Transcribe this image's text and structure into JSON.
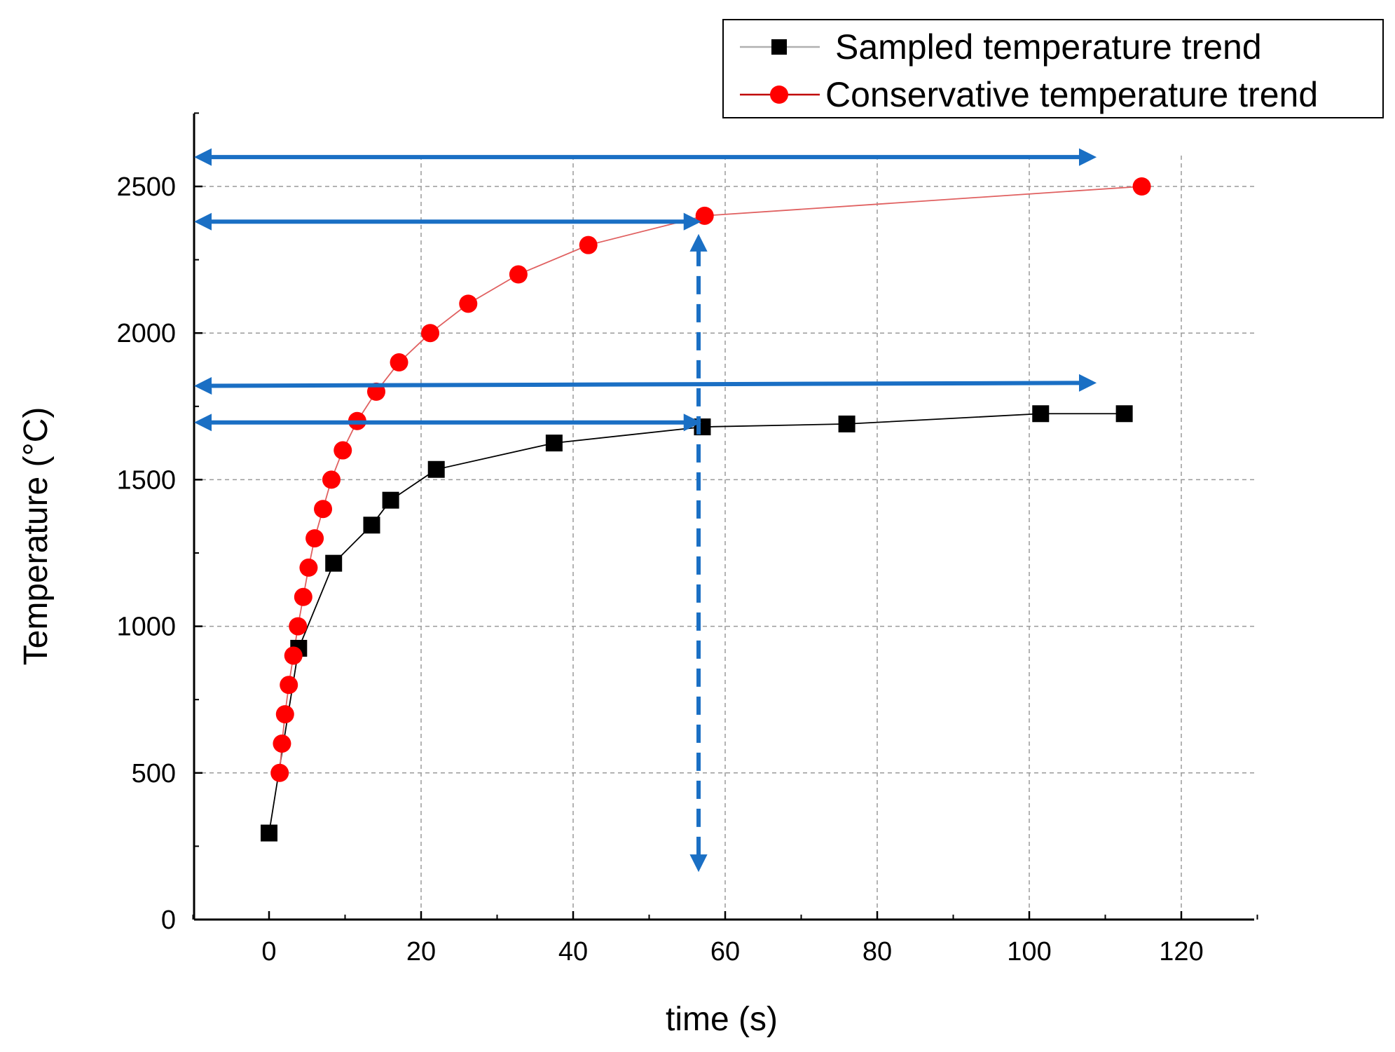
{
  "chart_data": {
    "type": "line",
    "title": "",
    "xlabel": "time (s)",
    "ylabel": "Temperature (°C)",
    "xlim": [
      -10,
      130
    ],
    "ylim": [
      0,
      2750
    ],
    "xticks": [
      0,
      20,
      40,
      60,
      80,
      100,
      120
    ],
    "yticks": [
      0,
      500,
      1000,
      1500,
      2000,
      2500
    ],
    "xtick_labels": [
      "0",
      "20",
      "40",
      "60",
      "80",
      "100",
      "120"
    ],
    "ytick_labels": [
      "0",
      "500",
      "1000",
      "1500",
      "2000",
      "2500"
    ],
    "grid": true,
    "legend_position": "top-right",
    "series": [
      {
        "name": "Sampled temperature trend",
        "marker": "square",
        "color": "#000000",
        "line_color": "#000000",
        "legend_line_color": "#b0b0b0",
        "x": [
          0,
          3.9,
          8.5,
          13.5,
          16,
          22,
          37.5,
          57,
          76,
          101.5,
          112.5
        ],
        "y": [
          295,
          925,
          1215,
          1345,
          1430,
          1535,
          1625,
          1680,
          1690,
          1725,
          1725
        ]
      },
      {
        "name": "Conservative temperature trend",
        "marker": "circle",
        "color": "#ff0000",
        "line_color": "#e06060",
        "legend_line_color": "#c00000",
        "x": [
          1.4,
          1.7,
          2.1,
          2.6,
          3.2,
          3.8,
          4.5,
          5.2,
          6.0,
          7.1,
          8.2,
          9.7,
          11.6,
          14.1,
          17.1,
          21.2,
          26.2,
          32.8,
          42.0,
          57.3,
          114.8
        ],
        "y": [
          500,
          600,
          700,
          800,
          900,
          1000,
          1100,
          1200,
          1300,
          1400,
          1500,
          1600,
          1700,
          1800,
          1900,
          2000,
          2100,
          2200,
          2300,
          2400,
          2500
        ]
      }
    ],
    "annotations": {
      "color": "#1a6fc4",
      "double_arrows": [
        {
          "x_start": -8,
          "x_end": 107,
          "y_start": 2600,
          "y_end": 2600
        },
        {
          "x_start": -8,
          "x_end": 55,
          "y_start": 2380,
          "y_end": 2380
        },
        {
          "x_start": -8,
          "x_end": 107,
          "y_start": 1820,
          "y_end": 1830
        },
        {
          "x_start": -8,
          "x_end": 55,
          "y_start": 1695,
          "y_end": 1695
        }
      ],
      "dashed_double_arrows": [
        {
          "x": 56.5,
          "y_start": 2290,
          "y_end": 210
        }
      ]
    }
  }
}
